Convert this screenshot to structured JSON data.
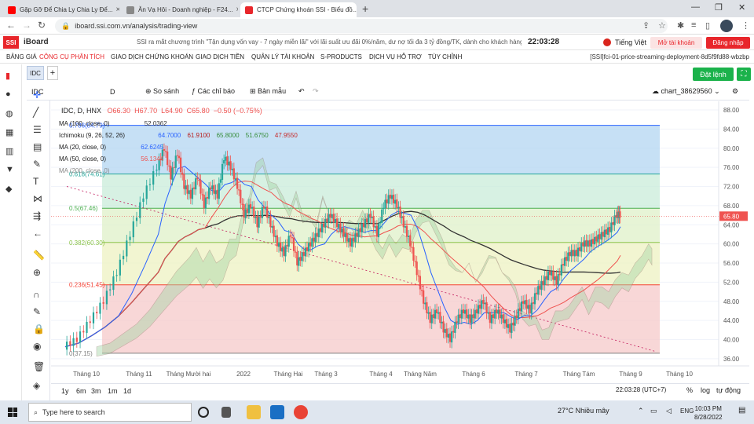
{
  "browser": {
    "tabs": [
      {
        "title": "Gặp Gỡ Để Chia Ly Chia Ly Để...",
        "icon": "youtube-icon"
      },
      {
        "title": "Ăn Vạ Hôi - Doanh nghiệp - F24...",
        "icon": "page-icon"
      },
      {
        "title": "CTCP Chứng khoán SSI - Biểu đồ...",
        "icon": "ssi-icon"
      }
    ],
    "url": "iboard.ssi.com.vn/analysis/trading-view"
  },
  "header": {
    "logo": "SSI",
    "app_name": "iBoard",
    "ticker": "SSI ra mắt chương trình \"Tận dụng vốn vay - 7 ngày miễn lãi\" với lãi suất ưu đãi 0%/năm, dư nợ tối đa 3 tỷ đồng/TK, dành cho khách hàng có MG",
    "clock": "22:03:28",
    "language": "Tiếng Việt",
    "open_account": "Mở tài khoản",
    "login": "Đăng nhập"
  },
  "menu": {
    "items": [
      "BẢNG GIÁ",
      "CÔNG CỤ PHÂN TÍCH",
      "GIAO DỊCH CHỨNG KHOÁN",
      "GIAO DỊCH TIỀN",
      "QUẢN LÝ TÀI KHOẢN",
      "S-PRODUCTS",
      "DỊCH VỤ HỖ TRỢ",
      "TÙY CHỈNH"
    ],
    "deployment": "[SSI]fci-01-price-streaming-deployment-8d5f9fd88-wbzbp"
  },
  "chart_tabs": {
    "active": "IDC",
    "add": "+"
  },
  "order_button": "Đặt lệnh",
  "toolbar": {
    "symbol": "IDC",
    "interval": "D",
    "compare": "So sánh",
    "indicators": "Các chỉ báo",
    "template": "Bản mẫu",
    "chart_name": "chart_38629560"
  },
  "legend": {
    "title": "IDC, D, HNX",
    "open": "O66.30",
    "high": "H67.70",
    "low": "L64.90",
    "close": "C65.80",
    "change": "−0.50 (−0.75%)",
    "ma100": {
      "label": "MA (100, close, 0)",
      "value": "52.0362"
    },
    "ichimoku": {
      "label": "Ichimoku (9, 26, 52, 26)",
      "values": [
        "64.7000",
        "61.9100",
        "65.8000",
        "51.6750",
        "47.9550"
      ]
    },
    "ma20": {
      "label": "MA (20, close, 0)",
      "value": "62.6245"
    },
    "ma50": {
      "label": "MA (50, close, 0)",
      "value": "56.1344"
    },
    "ma200": {
      "label": "MA (200, close, 0)",
      "value": ""
    }
  },
  "fib_labels": [
    "0.786(84.79)",
    "0.618(74.61)",
    "0.5(67.46)",
    "0.382(60.30)",
    "0.236(51.45)",
    "0(37.15)"
  ],
  "last_price_tag": "65.80",
  "bottom": {
    "ranges": [
      "1y",
      "6m",
      "3m",
      "1m",
      "1d"
    ],
    "clock": "22:03:28 (UTC+7)",
    "options": [
      "%",
      "log",
      "tự động"
    ]
  },
  "taskbar": {
    "search": "Type here to search",
    "weather": "27°C  Nhiều mây",
    "lang": "ENG",
    "time": "10:03 PM",
    "date": "8/28/2022"
  },
  "chart_data": {
    "type": "candlestick",
    "title": "IDC, D, HNX",
    "y_ticks": [
      36,
      40,
      44,
      48,
      52,
      56,
      60,
      64,
      68,
      72,
      76,
      80,
      84,
      88
    ],
    "x_labels": [
      "Tháng 10",
      "Tháng 11",
      "Tháng Mười hai",
      "2022",
      "Tháng Hai",
      "Tháng 3",
      "Tháng 4",
      "Tháng Năm",
      "Tháng 6",
      "Tháng 7",
      "Tháng Tám",
      "Tháng 9",
      "Tháng 10"
    ],
    "ylim": [
      34.5,
      88.5
    ],
    "fib_levels": [
      {
        "label": "0.786(84.79)",
        "value": 84.79,
        "color": "#2962ff"
      },
      {
        "label": "0.618(74.61)",
        "value": 74.61,
        "color": "#26a69a"
      },
      {
        "label": "0.5(67.46)",
        "value": 67.46,
        "color": "#4caf50"
      },
      {
        "label": "0.382(60.30)",
        "value": 60.3,
        "color": "#8bc34a"
      },
      {
        "label": "0.236(51.45)",
        "value": 51.45,
        "color": "#f44336"
      },
      {
        "label": "0(37.15)",
        "value": 37.15,
        "color": "#808080"
      }
    ],
    "fib_bands": [
      {
        "from": 84.79,
        "to": 74.61,
        "color": "#b3d6f2"
      },
      {
        "from": 74.61,
        "to": 67.46,
        "color": "#c9ecd9"
      },
      {
        "from": 67.46,
        "to": 60.3,
        "color": "#dff0c8"
      },
      {
        "from": 60.3,
        "to": 51.45,
        "color": "#eef2c2"
      },
      {
        "from": 51.45,
        "to": 37.15,
        "color": "#f6caca"
      }
    ],
    "price_path": [
      [
        0,
        38.5
      ],
      [
        4,
        40
      ],
      [
        8,
        44
      ],
      [
        12,
        48
      ],
      [
        16,
        54
      ],
      [
        20,
        62
      ],
      [
        24,
        70
      ],
      [
        28,
        76
      ],
      [
        30,
        80
      ],
      [
        32,
        74
      ],
      [
        34,
        79
      ],
      [
        36,
        72
      ],
      [
        38,
        70
      ],
      [
        40,
        74
      ],
      [
        42,
        68
      ],
      [
        44,
        72
      ],
      [
        46,
        70
      ],
      [
        48,
        78
      ],
      [
        50,
        76
      ],
      [
        52,
        72
      ],
      [
        54,
        66
      ],
      [
        56,
        68
      ],
      [
        58,
        64
      ],
      [
        60,
        68
      ],
      [
        62,
        64
      ],
      [
        64,
        60
      ],
      [
        66,
        58
      ],
      [
        68,
        62
      ],
      [
        70,
        56
      ],
      [
        72,
        58
      ],
      [
        74,
        60
      ],
      [
        76,
        62
      ],
      [
        78,
        64
      ],
      [
        80,
        66
      ],
      [
        82,
        64
      ],
      [
        84,
        62
      ],
      [
        86,
        60
      ],
      [
        88,
        62
      ],
      [
        90,
        64
      ],
      [
        92,
        66
      ],
      [
        94,
        62
      ],
      [
        96,
        68
      ],
      [
        98,
        70
      ],
      [
        100,
        68
      ],
      [
        102,
        64
      ],
      [
        104,
        60
      ],
      [
        106,
        54
      ],
      [
        108,
        48
      ],
      [
        110,
        44
      ],
      [
        112,
        46
      ],
      [
        114,
        42
      ],
      [
        116,
        40
      ],
      [
        118,
        44
      ],
      [
        120,
        46
      ],
      [
        122,
        44
      ],
      [
        124,
        46
      ],
      [
        126,
        48
      ],
      [
        128,
        44
      ],
      [
        130,
        46
      ],
      [
        132,
        44
      ],
      [
        134,
        42
      ],
      [
        136,
        45
      ],
      [
        138,
        48
      ],
      [
        140,
        46
      ],
      [
        142,
        50
      ],
      [
        144,
        52
      ],
      [
        146,
        54
      ],
      [
        148,
        52
      ],
      [
        150,
        56
      ],
      [
        152,
        58
      ],
      [
        154,
        58
      ],
      [
        156,
        60
      ],
      [
        158,
        60
      ],
      [
        160,
        61
      ],
      [
        162,
        62
      ],
      [
        164,
        63
      ],
      [
        166,
        66
      ],
      [
        167,
        66
      ]
    ],
    "last_close": 65.8,
    "candle_colors": {
      "up": "#26a69a",
      "down": "#ef5350"
    },
    "line_colors": {
      "ma20": "#2962ff",
      "ma50": "#ef5350",
      "ma100": "#333333",
      "ichimoku_cloud_up": "#a5d6a7",
      "ichimoku_cloud_down": "#ef9a9a",
      "ichimoku_lead": "#8d6e63"
    }
  }
}
